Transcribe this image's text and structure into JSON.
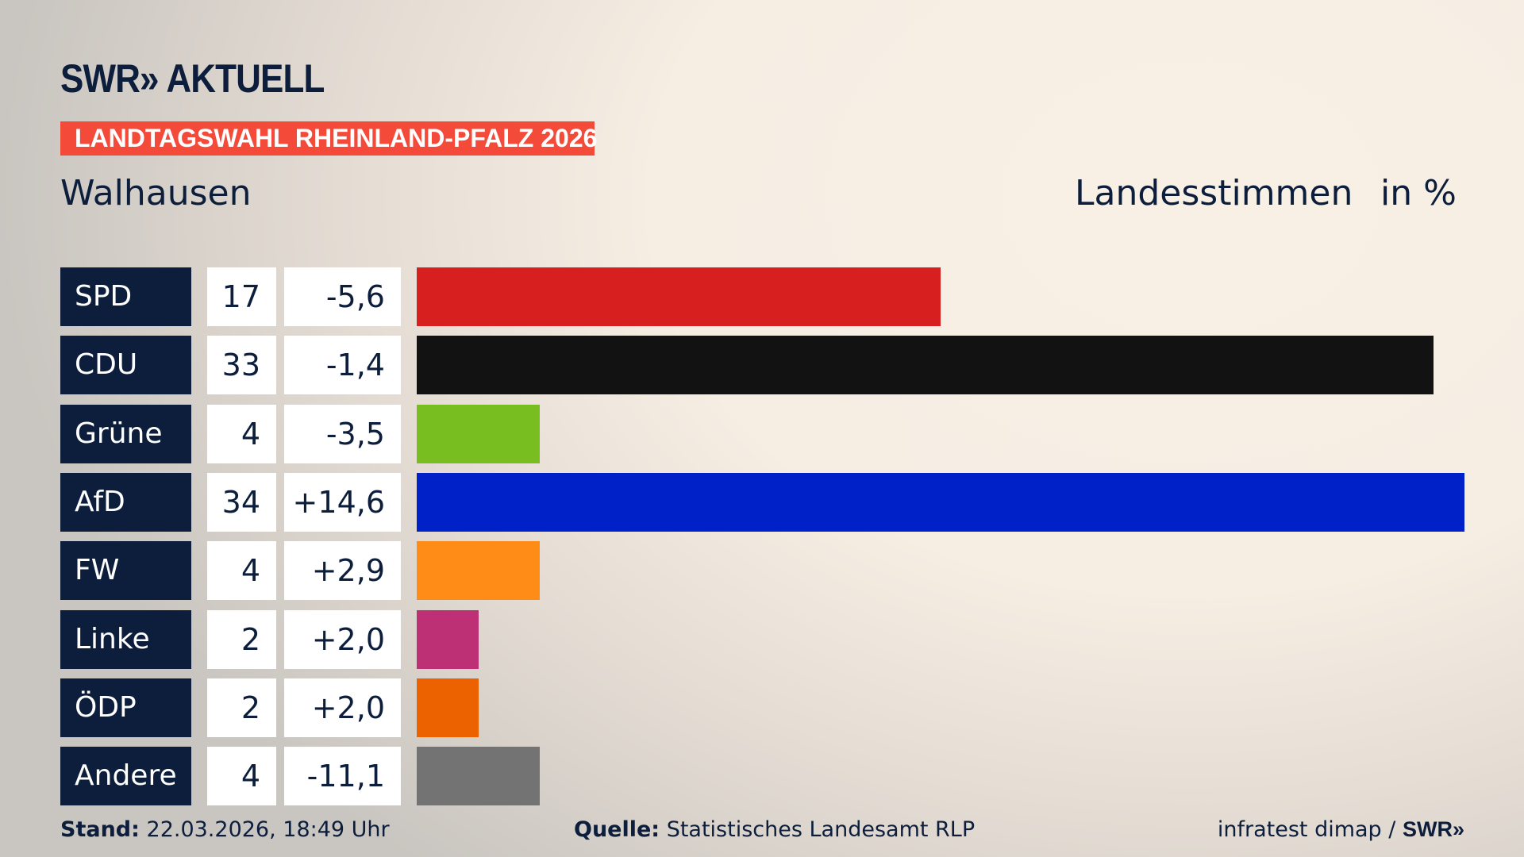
{
  "header": {
    "logo_text": "SWR» AKTUELL",
    "banner": "LANDTAGSWAHL RHEINLAND-PFALZ 2026",
    "place": "Walhausen",
    "vote_type": "Landesstimmen",
    "unit": "in %",
    "banner_color": "#f44a3a"
  },
  "chart_data": {
    "type": "bar",
    "orientation": "horizontal",
    "categories": [
      "SPD",
      "CDU",
      "Grüne",
      "AfD",
      "FW",
      "Linke",
      "ÖDP",
      "Andere"
    ],
    "values": [
      17,
      33,
      4,
      34,
      4,
      2,
      2,
      4
    ],
    "value_labels": [
      "17",
      "33",
      "4",
      "34",
      "4",
      "2",
      "2",
      "4"
    ],
    "changes": [
      "-5,6",
      "-1,4",
      "-3,5",
      "+14,6",
      "+2,9",
      "+2,0",
      "+2,0",
      "-11,1"
    ],
    "colors": [
      "#d81f1f",
      "#121212",
      "#78be20",
      "#0021c8",
      "#ff8c17",
      "#be3075",
      "#ec6200",
      "#737373"
    ],
    "xlim": [
      0,
      34
    ],
    "grid": false
  },
  "footer": {
    "stand_label": "Stand:",
    "stand_value": "22.03.2026, 18:49 Uhr",
    "source_label": "Quelle:",
    "source_value": "Statistisches Landesamt RLP",
    "credit": "infratest dimap /",
    "credit_logo": "SWR»"
  }
}
